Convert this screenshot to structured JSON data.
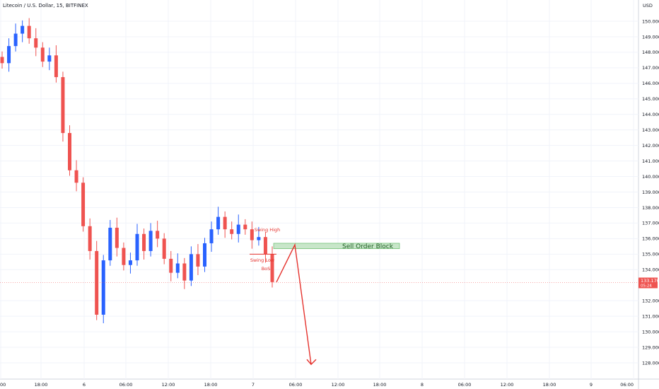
{
  "header": {
    "title": "Litecoin / U.S. Dollar, 15, BITFINEX"
  },
  "price_axis": {
    "currency": "USD"
  },
  "last_price": {
    "value": "133.170",
    "countdown": "05:24",
    "color": "#ef5350"
  },
  "colors": {
    "up": "#2962ff",
    "down": "#ef5350",
    "annotation": "#e5322d",
    "order_block_fill": "#c8e6c9",
    "order_block_border": "#66bb6a"
  },
  "annotations": {
    "swing_high": "Swing High",
    "swing_low": "Swing Low",
    "bos": "BoS",
    "order_block": "Sell Order Block"
  },
  "chart_data": {
    "type": "candlestick",
    "ylim": [
      127.5,
      150.5
    ],
    "y_ticks": [
      "150.000",
      "149.000",
      "148.000",
      "147.000",
      "146.000",
      "145.000",
      "144.000",
      "143.000",
      "142.000",
      "141.000",
      "140.000",
      "139.000",
      "138.000",
      "137.000",
      "136.000",
      "135.000",
      "134.000",
      "132.000",
      "131.000",
      "130.000",
      "129.000",
      "128.000"
    ],
    "x_ticks": [
      "00",
      "18:00",
      "6",
      "06:00",
      "12:00",
      "18:00",
      "7",
      "06:00",
      "12:00",
      "18:00",
      "8",
      "06:00",
      "12:00",
      "18:00",
      "9",
      "06:00"
    ],
    "series": [
      {
        "description": "close prices, 15-minute candles",
        "points": [
          {
            "t": 0,
            "v": 147.3
          },
          {
            "t": 1,
            "v": 148.4
          },
          {
            "t": 2,
            "v": 149.2
          },
          {
            "t": 3,
            "v": 149.7
          },
          {
            "t": 4,
            "v": 148.9
          },
          {
            "t": 5,
            "v": 148.3
          },
          {
            "t": 6,
            "v": 147.4
          },
          {
            "t": 7,
            "v": 147.8
          },
          {
            "t": 8,
            "v": 146.4
          },
          {
            "t": 9,
            "v": 142.8
          },
          {
            "t": 10,
            "v": 140.4
          },
          {
            "t": 11,
            "v": 139.6
          },
          {
            "t": 12,
            "v": 136.8
          },
          {
            "t": 13,
            "v": 135.2
          },
          {
            "t": 14,
            "v": 131.1
          },
          {
            "t": 15,
            "v": 134.6
          },
          {
            "t": 16,
            "v": 136.7
          },
          {
            "t": 17,
            "v": 135.4
          },
          {
            "t": 18,
            "v": 134.3
          },
          {
            "t": 19,
            "v": 134.6
          },
          {
            "t": 20,
            "v": 136.3
          },
          {
            "t": 21,
            "v": 135.2
          },
          {
            "t": 22,
            "v": 136.5
          },
          {
            "t": 23,
            "v": 136.0
          },
          {
            "t": 24,
            "v": 134.7
          },
          {
            "t": 25,
            "v": 133.8
          },
          {
            "t": 26,
            "v": 134.4
          },
          {
            "t": 27,
            "v": 133.3
          },
          {
            "t": 28,
            "v": 135.0
          },
          {
            "t": 29,
            "v": 134.2
          },
          {
            "t": 30,
            "v": 135.7
          },
          {
            "t": 31,
            "v": 136.6
          },
          {
            "t": 32,
            "v": 137.4
          },
          {
            "t": 33,
            "v": 136.6
          },
          {
            "t": 34,
            "v": 136.3
          },
          {
            "t": 35,
            "v": 136.9
          },
          {
            "t": 36,
            "v": 136.6
          },
          {
            "t": 37,
            "v": 135.9
          },
          {
            "t": 38,
            "v": 136.1
          },
          {
            "t": 39,
            "v": 135.0
          },
          {
            "t": 40,
            "v": 133.2
          }
        ]
      }
    ],
    "levels": [
      {
        "name": "Sell Order Block",
        "from": 135.35,
        "to": 135.7
      },
      {
        "name": "Swing Low",
        "value": 135.0
      },
      {
        "name": "Last price",
        "value": 133.17
      }
    ],
    "projection": [
      {
        "t": 40,
        "v": 133.2
      },
      {
        "t": 41,
        "v": 135.6
      },
      {
        "t": 43,
        "v": 127.9
      }
    ]
  }
}
